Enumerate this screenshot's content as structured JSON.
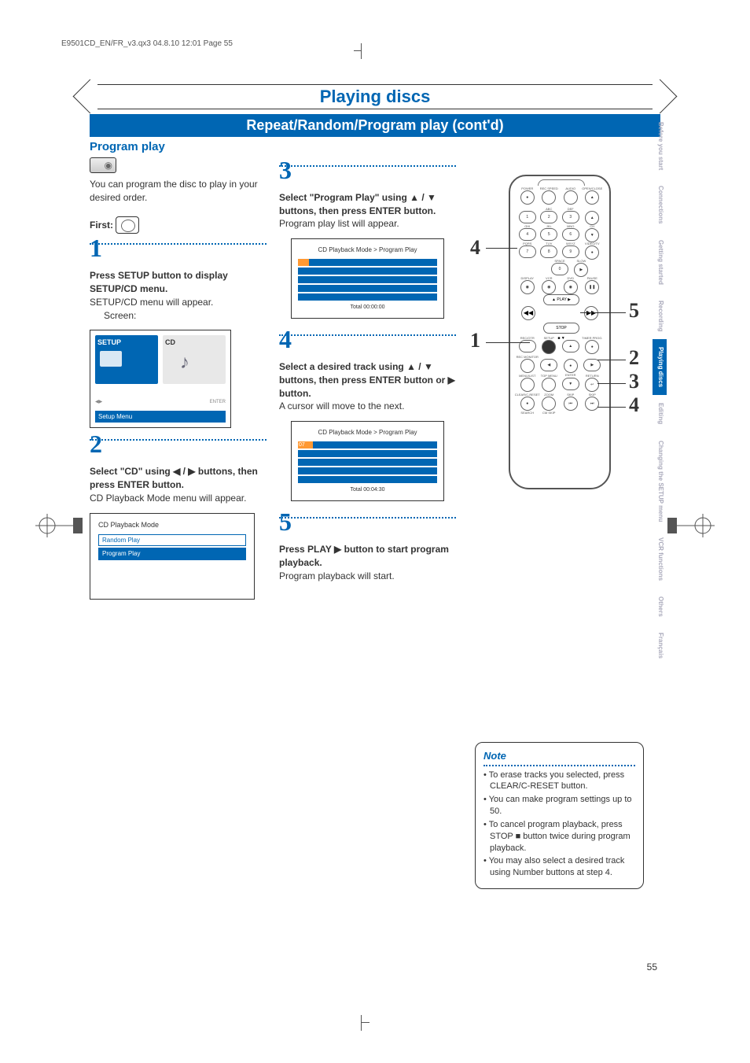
{
  "header_text": "E9501CD_EN/FR_v3.qx3  04.8.10  12:01  Page 55",
  "page_number": "55",
  "main_title": "Playing discs",
  "subtitle": "Repeat/Random/Program play (cont'd)",
  "section": "Program play",
  "intro": "You can program the disc to play in your desired order.",
  "first_label": "First:",
  "steps": {
    "s1": {
      "num": "1",
      "head": "Press SETUP button to display SETUP/CD menu.",
      "body": "SETUP/CD menu will appear.",
      "screen_label": "Screen:"
    },
    "s2": {
      "num": "2",
      "head": "Select \"CD\" using ◀ / ▶ buttons, then press ENTER button.",
      "body": "CD Playback Mode menu will appear."
    },
    "s3": {
      "num": "3",
      "head": "Select \"Program Play\" using ▲ / ▼ buttons, then press ENTER button.",
      "body": "Program play list will appear."
    },
    "s4": {
      "num": "4",
      "head": "Select a desired track using ▲ / ▼ buttons, then press ENTER button or ▶ button.",
      "body": "A cursor will move to the next."
    },
    "s5": {
      "num": "5",
      "head": "Press PLAY ▶ button to start program playback.",
      "body": "Program playback will start."
    }
  },
  "setup_screen": {
    "setup": "SETUP",
    "cd": "CD",
    "caption": "Setup Menu"
  },
  "cd_mode": {
    "title": "CD Playback Mode",
    "items": [
      "Random Play",
      "Program Play"
    ]
  },
  "prog_screen1": {
    "title": "CD Playback Mode > Program Play",
    "total": "Total        00:00:00"
  },
  "prog_screen2": {
    "title": "CD Playback Mode > Program Play",
    "total": "Total        00:04:30"
  },
  "note": {
    "title": "Note",
    "items": [
      "To erase tracks you selected, press CLEAR/C-RESET button.",
      "You can make program settings up to 50.",
      "To cancel program playback, press STOP ■ button twice during program playback.",
      "You may also select a desired track using Number buttons at step 4."
    ]
  },
  "callouts": {
    "c1": "1",
    "c2": "2",
    "c3": "3",
    "c4": "4",
    "c5": "5",
    "lc4": "4"
  },
  "remote": {
    "top_row": [
      "POWER",
      "REC SPEED",
      "AUDIO",
      "OPEN/CLOSE"
    ],
    "num_labels": [
      "",
      "ABC",
      "DEF",
      "",
      "GHI",
      "JKL",
      "MNO",
      "CH",
      "PQRS",
      "TUV",
      "WXYZ",
      "VIDEO/TV"
    ],
    "nums": [
      "1",
      "2",
      "3",
      "·",
      "4",
      "5",
      "6",
      "▼",
      "7",
      "8",
      "9",
      "●"
    ],
    "space": "SPACE",
    "zero": "0",
    "slow": "SLOW",
    "display": "DISPLAY",
    "vcr": "VCR",
    "dvd": "DVD",
    "pause": "PAUSE",
    "play": "PLAY",
    "stop": "STOP",
    "rec": "REC/OTR",
    "setup": "SETUP",
    "timer": "TIMER PROG.",
    "recmon": "REC MONITOR",
    "enter": "ENTER",
    "menulist": "MENU/LIST",
    "topmenu": "TOP MENU",
    "return": "RETURN",
    "clear": "CLEAR/C-RESET",
    "zoom": "ZOOM",
    "skip1": "SKIP",
    "skip2": "SKIP",
    "search": "SEARCH",
    "cmskip": "CM SKIP"
  },
  "tabs": [
    "Before you start",
    "Connections",
    "Getting started",
    "Recording",
    "Playing discs",
    "Editing",
    "Changing the SETUP menu",
    "VCR functions",
    "Others",
    "Français"
  ],
  "active_tab_index": 4,
  "colors": {
    "primary": "#0066b3",
    "text": "#333333",
    "inactive": "#aaaabb",
    "highlight": "#ff9933"
  }
}
